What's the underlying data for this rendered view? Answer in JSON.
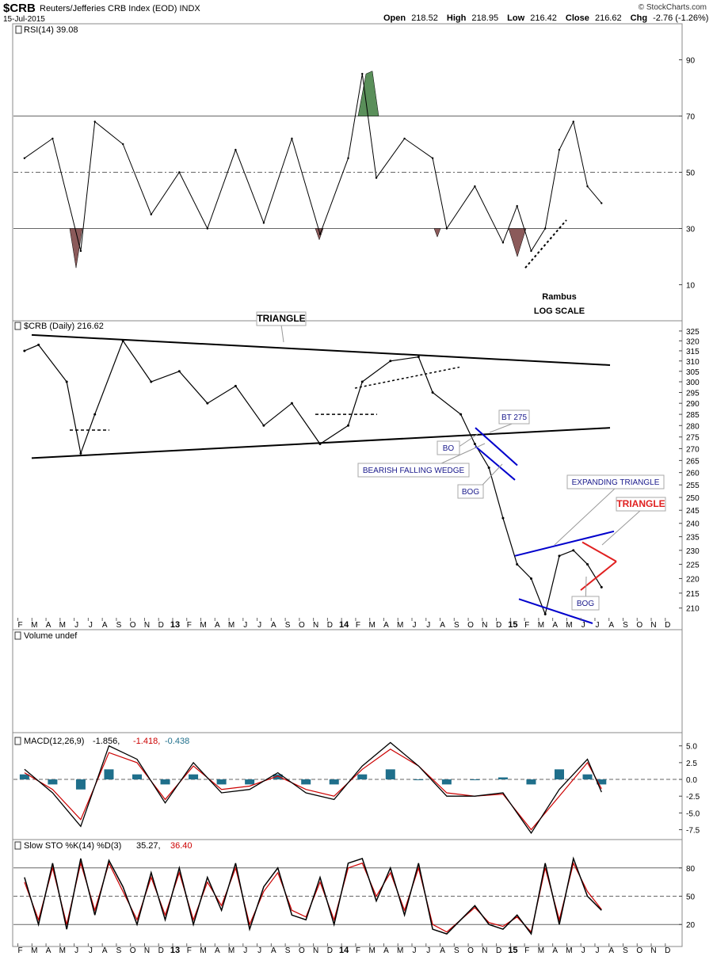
{
  "header": {
    "symbol": "$CRB",
    "name": "Reuters/Jefferies CRB Index (EOD)",
    "exchange": "INDX",
    "date": "15-Jul-2015",
    "credit": "© StockCharts.com",
    "open_label": "Open",
    "open": "218.52",
    "high_label": "High",
    "high": "218.95",
    "low_label": "Low",
    "low": "216.42",
    "close_label": "Close",
    "close": "216.62",
    "chg_label": "Chg",
    "chg": "-2.76 (-1.26%)",
    "colors": {
      "down": "#c00000"
    }
  },
  "x_axis_labels": [
    "F",
    "M",
    "A",
    "M",
    "J",
    "J",
    "A",
    "S",
    "O",
    "N",
    "D",
    "13",
    "F",
    "M",
    "A",
    "M",
    "J",
    "J",
    "A",
    "S",
    "O",
    "N",
    "D",
    "14",
    "F",
    "M",
    "A",
    "M",
    "J",
    "J",
    "A",
    "S",
    "O",
    "N",
    "D",
    "15",
    "F",
    "M",
    "A",
    "M",
    "J",
    "J",
    "A",
    "S",
    "O",
    "N",
    "D"
  ],
  "chart_data": [
    {
      "panel": "rsi",
      "type": "line",
      "title": "RSI(14) 39.08",
      "ylim": [
        0,
        100
      ],
      "yticks": [
        10,
        30,
        50,
        70,
        90
      ],
      "reference_lines": [
        30,
        50,
        70
      ],
      "x": [
        "2012-02",
        "2012-04",
        "2012-06",
        "2012-07",
        "2012-09",
        "2012-11",
        "2013-01",
        "2013-03",
        "2013-05",
        "2013-07",
        "2013-09",
        "2013-11",
        "2014-01",
        "2014-02",
        "2014-03",
        "2014-05",
        "2014-07",
        "2014-08",
        "2014-10",
        "2014-12",
        "2015-01",
        "2015-02",
        "2015-03",
        "2015-04",
        "2015-05",
        "2015-06",
        "2015-07"
      ],
      "values": [
        55,
        62,
        22,
        68,
        60,
        35,
        50,
        30,
        58,
        32,
        62,
        28,
        55,
        85,
        48,
        62,
        55,
        30,
        45,
        25,
        38,
        22,
        30,
        58,
        68,
        45,
        39
      ],
      "colors": {
        "overbought": "#5a8f5a",
        "oversold": "#8b5a5a",
        "line": "#000000"
      },
      "annotations": [
        "Rambus",
        "LOG SCALE"
      ]
    },
    {
      "panel": "price",
      "type": "line",
      "title": "$CRB (Daily) 216.62",
      "scale": "log",
      "ylim": [
        205,
        327
      ],
      "yticks": [
        210,
        215,
        220,
        225,
        230,
        235,
        240,
        245,
        250,
        255,
        260,
        265,
        270,
        275,
        280,
        285,
        290,
        295,
        300,
        305,
        310,
        315,
        320,
        325
      ],
      "x": [
        "2012-02",
        "2012-03",
        "2012-05",
        "2012-06",
        "2012-07",
        "2012-09",
        "2012-11",
        "2013-01",
        "2013-03",
        "2013-05",
        "2013-07",
        "2013-09",
        "2013-11",
        "2014-01",
        "2014-02",
        "2014-04",
        "2014-06",
        "2014-07",
        "2014-09",
        "2014-10",
        "2014-11",
        "2014-12",
        "2015-01",
        "2015-02",
        "2015-03",
        "2015-04",
        "2015-05",
        "2015-06",
        "2015-07"
      ],
      "values": [
        315,
        318,
        300,
        268,
        285,
        320,
        300,
        305,
        290,
        298,
        280,
        290,
        272,
        280,
        300,
        310,
        312,
        295,
        285,
        272,
        262,
        242,
        225,
        220,
        208,
        228,
        230,
        225,
        217
      ],
      "annotations": [
        "TRIANGLE",
        "BT 275",
        "BO",
        "BEARISH FALLING WEDGE",
        "BOG",
        "EXPANDING TRIANGLE",
        "TRIANGLE",
        "BOG"
      ],
      "colors": {
        "trend": "#000000",
        "wedge": "#0000cc",
        "triangle": "#e02020"
      }
    },
    {
      "panel": "volume",
      "type": "bar",
      "title": "Volume undef",
      "values": []
    },
    {
      "panel": "macd",
      "type": "line",
      "title": "MACD(12,26,9)",
      "title_values": [
        "-1.856",
        "-1.418",
        "-0.438"
      ],
      "ylim": [
        -8.5,
        6.5
      ],
      "yticks": [
        "5.0",
        "2.5",
        "0.0",
        "-2.5",
        "-5.0",
        "-7.5"
      ],
      "x": [
        "2012-02",
        "2012-04",
        "2012-06",
        "2012-08",
        "2012-10",
        "2012-12",
        "2013-02",
        "2013-04",
        "2013-06",
        "2013-08",
        "2013-10",
        "2013-12",
        "2014-02",
        "2014-04",
        "2014-06",
        "2014-08",
        "2014-10",
        "2014-12",
        "2015-02",
        "2015-04",
        "2015-06",
        "2015-07"
      ],
      "series": [
        {
          "name": "-1.856",
          "values": [
            1.5,
            -2.0,
            -7.0,
            5.0,
            3.0,
            -3.5,
            2.5,
            -2.0,
            -1.5,
            1.0,
            -2.0,
            -3.0,
            2.0,
            5.5,
            2.0,
            -2.5,
            -2.5,
            -2.0,
            -8.0,
            -1.5,
            3.0,
            -1.9
          ]
        },
        {
          "name": "-1.418",
          "values": [
            1.0,
            -1.5,
            -6.0,
            4.0,
            2.5,
            -3.0,
            2.0,
            -1.5,
            -1.0,
            0.5,
            -1.5,
            -2.5,
            1.5,
            4.5,
            2.0,
            -2.0,
            -2.5,
            -2.2,
            -7.5,
            -2.5,
            2.5,
            -1.4
          ]
        }
      ],
      "histogram_name": "-0.438",
      "colors": {
        "macd": "#000000",
        "signal": "#cc0000",
        "histogram": "#1f6f8b"
      }
    },
    {
      "panel": "stochastic",
      "type": "line",
      "title": "Slow STO %K(14) %D(3)",
      "title_values": [
        "35.27",
        "36.40"
      ],
      "ylim": [
        0,
        100
      ],
      "yticks": [
        20,
        50,
        80
      ],
      "x": [
        "2012-02",
        "2012-03",
        "2012-04",
        "2012-05",
        "2012-06",
        "2012-07",
        "2012-08",
        "2012-09",
        "2012-10",
        "2012-11",
        "2012-12",
        "2013-01",
        "2013-02",
        "2013-03",
        "2013-04",
        "2013-05",
        "2013-06",
        "2013-07",
        "2013-08",
        "2013-09",
        "2013-10",
        "2013-11",
        "2013-12",
        "2014-01",
        "2014-02",
        "2014-03",
        "2014-04",
        "2014-05",
        "2014-06",
        "2014-07",
        "2014-08",
        "2014-09",
        "2014-10",
        "2014-11",
        "2014-12",
        "2015-01",
        "2015-02",
        "2015-03",
        "2015-04",
        "2015-05",
        "2015-06",
        "2015-07"
      ],
      "series": [
        {
          "name": "35.27",
          "values": [
            70,
            20,
            85,
            15,
            90,
            30,
            88,
            60,
            20,
            75,
            25,
            80,
            20,
            70,
            35,
            85,
            15,
            60,
            80,
            30,
            25,
            70,
            20,
            85,
            90,
            45,
            80,
            30,
            85,
            15,
            10,
            25,
            40,
            20,
            15,
            30,
            10,
            85,
            20,
            90,
            50,
            35
          ]
        },
        {
          "name": "36.40",
          "values": [
            65,
            25,
            80,
            20,
            85,
            35,
            85,
            55,
            25,
            70,
            30,
            75,
            25,
            65,
            40,
            80,
            20,
            55,
            75,
            35,
            28,
            65,
            25,
            80,
            85,
            50,
            75,
            35,
            80,
            20,
            12,
            25,
            38,
            22,
            18,
            28,
            12,
            80,
            25,
            85,
            55,
            36
          ]
        }
      ],
      "colors": {
        "k": "#000000",
        "d": "#cc0000"
      }
    }
  ]
}
